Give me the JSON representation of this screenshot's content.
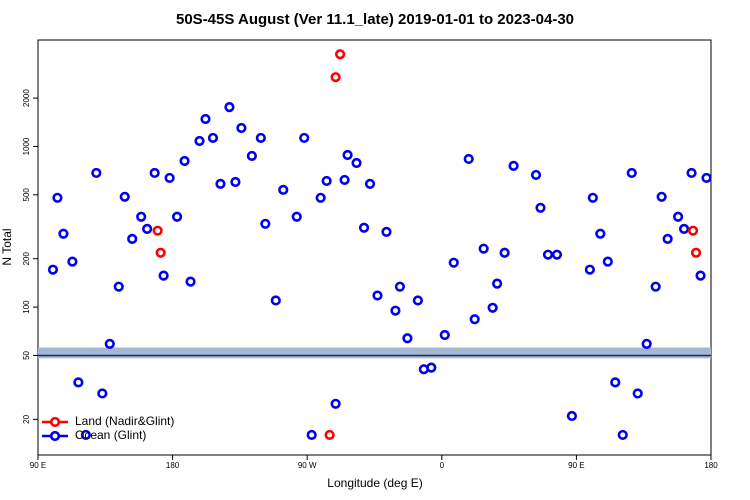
{
  "chart_data": {
    "type": "scatter",
    "title": "50S-45S August (Ver 11.1_late)   2019-01-01 to 2023-04-30",
    "xlabel": "Longitude (deg E)",
    "ylabel": "N Total",
    "xlim": [
      90,
      540
    ],
    "xticks": [
      {
        "value": 90,
        "label": "90 E"
      },
      180,
      {
        "value": 270,
        "label": "90 W"
      },
      {
        "value": 360,
        "label": "0"
      },
      {
        "value": 450,
        "label": "90 E"
      },
      {
        "value": 540,
        "label": "180"
      }
    ],
    "ylim": [
      12,
      4600
    ],
    "yscale": "log",
    "yticks": [
      20,
      50,
      100,
      200,
      500,
      1000,
      2000
    ],
    "reference_line": 50,
    "reference_band": [
      48,
      56
    ],
    "reference_color": "#1a2a5a",
    "band_color": "#a7b7d2",
    "legend": "lower left",
    "series": [
      {
        "name": "Land (Nadir&Glint)",
        "color": "#ff0000",
        "x": [
          170,
          172,
          285,
          289,
          292,
          528,
          530
        ],
        "values": [
          299,
          218,
          16,
          2700,
          3750,
          299,
          218
        ]
      },
      {
        "name": "Ocean (Glint)",
        "color": "#0000ee",
        "x": [
          100,
          103,
          107,
          113,
          117,
          122,
          129,
          133,
          138,
          144,
          148,
          153,
          159,
          163,
          168,
          174,
          178,
          183,
          188,
          192,
          198,
          202,
          207,
          212,
          218,
          222,
          226,
          233,
          239,
          242,
          249,
          254,
          263,
          268,
          273,
          279,
          283,
          289,
          295,
          297,
          303,
          308,
          312,
          317,
          323,
          329,
          332,
          337,
          344,
          348,
          353,
          362,
          368,
          378,
          382,
          388,
          394,
          397,
          402,
          408,
          423,
          426,
          431,
          437,
          447,
          459,
          461,
          466,
          471,
          476,
          481,
          487,
          491,
          497,
          503,
          507,
          511,
          518,
          522,
          527,
          533,
          537
        ],
        "values": [
          171,
          479,
          286,
          192,
          34,
          16,
          684,
          29,
          59,
          134,
          486,
          266,
          365,
          307,
          684,
          157,
          637,
          365,
          812,
          144,
          1081,
          1482,
          1130,
          585,
          1758,
          601,
          1303,
          873,
          1130,
          330,
          110,
          537,
          365,
          1130,
          16,
          479,
          610,
          25,
          619,
          885,
          789,
          312,
          585,
          118,
          294,
          95,
          134,
          64,
          110,
          41,
          42,
          67,
          189,
          836,
          84,
          231,
          99,
          140,
          218,
          757,
          665,
          415,
          212,
          212,
          21,
          171,
          479,
          286,
          192,
          34,
          16,
          684,
          29,
          59,
          134,
          486,
          266,
          365,
          307,
          684,
          157,
          637
        ]
      }
    ]
  }
}
